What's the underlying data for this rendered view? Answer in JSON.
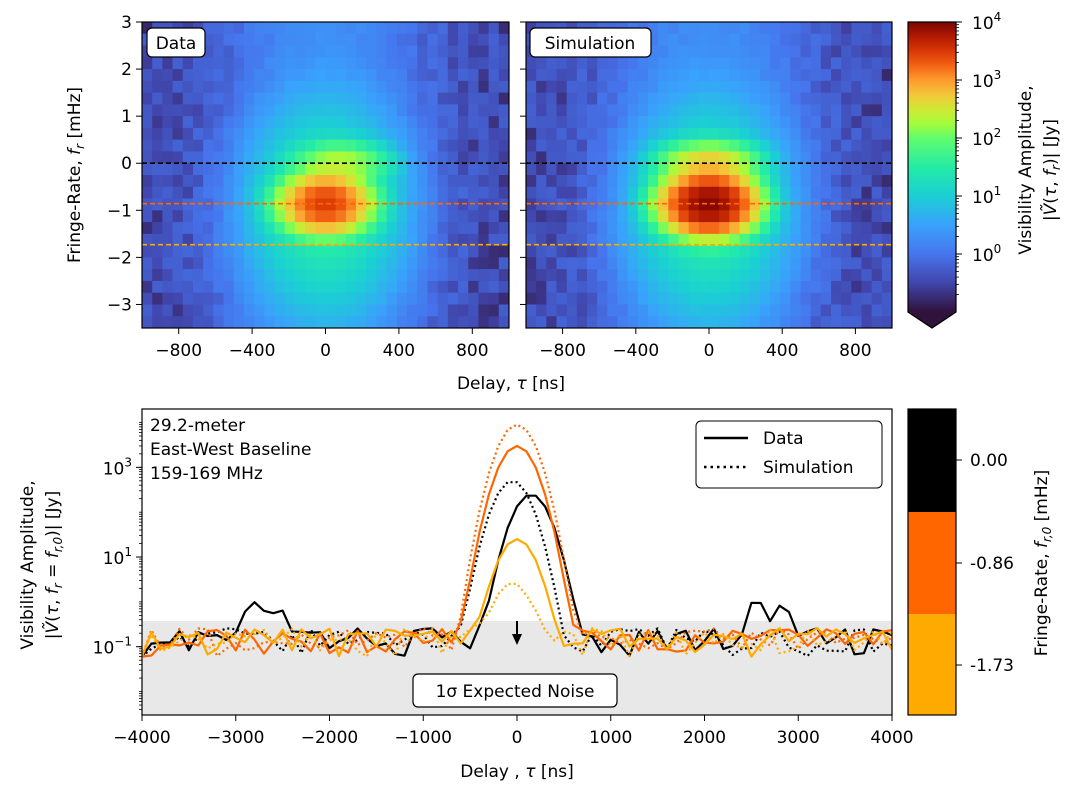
{
  "chart_data": [
    {
      "type": "heatmap",
      "panel_label": "Data",
      "x_ticks": [
        -800,
        -400,
        0,
        400,
        800
      ],
      "xlim": [
        -1000,
        1000
      ],
      "y_ticks": [
        3,
        2,
        1,
        0,
        -1,
        -2,
        -3
      ],
      "ylim": [
        -3.5,
        3
      ],
      "ylabel": "Fringe-Rate, f_r [mHz]",
      "dashed_lines_mHz": [
        0.0,
        -0.86,
        -1.73
      ],
      "peak": {
        "delay_ns": 0,
        "fringe_rate_mHz": -0.86,
        "amplitude_Jy": 3000
      },
      "secondary_peak": {
        "delay_ns": 80,
        "fringe_rate_mHz": 0.0,
        "amplitude_Jy": 200
      }
    },
    {
      "type": "heatmap",
      "panel_label": "Simulation",
      "x_ticks": [
        -800,
        -400,
        0,
        400,
        800
      ],
      "xlim": [
        -1000,
        1000
      ],
      "ylim": [
        -3.5,
        3
      ],
      "dashed_lines_mHz": [
        0.0,
        -0.86,
        -1.73
      ],
      "peak": {
        "delay_ns": 0,
        "fringe_rate_mHz": -0.86,
        "amplitude_Jy": 9000
      },
      "secondary_peak": {
        "delay_ns": 0,
        "fringe_rate_mHz": 0.0,
        "amplitude_Jy": 500
      }
    },
    {
      "type": "colorbar",
      "scale": "log",
      "range": [
        0.1,
        10000
      ],
      "tick_labels": [
        "10^4",
        "10^3",
        "10^2",
        "10^1",
        "10^0"
      ],
      "tick_values": [
        10000,
        1000,
        100,
        10,
        1
      ],
      "label": "Visibility Amplitude, |Ṽ(τ, f_r)| [Jy]"
    },
    {
      "type": "line",
      "xlabel": "Delay , τ [ns]",
      "ylabel": "Visibility Amplitude, |Ṽ(τ, f_r = f_r,0)| [Jy]",
      "xlim": [
        -4000,
        4000
      ],
      "x_ticks": [
        -4000,
        -3000,
        -2000,
        -1000,
        0,
        1000,
        2000,
        3000,
        4000
      ],
      "y_scale": "log",
      "ylim": [
        0.003,
        20000
      ],
      "y_ticks": [
        1000,
        10,
        0.1
      ],
      "y_tick_labels": [
        "10^3",
        "10^1",
        "10^-1"
      ],
      "noise_level_Jy": 0.2,
      "noise_label": "1σ Expected Noise",
      "annotation": [
        "29.2-meter",
        "East-West Baseline",
        "159-169 MHz"
      ],
      "legend": [
        {
          "label": "Data",
          "style": "solid"
        },
        {
          "label": "Simulation",
          "style": "dotted"
        }
      ],
      "series": [
        {
          "fringe_rate": 0.0,
          "color": "#000000",
          "style": "solid",
          "peak_Jy": 250,
          "peak_delay_ns": 150
        },
        {
          "fringe_rate": 0.0,
          "color": "#000000",
          "style": "dotted",
          "peak_Jy": 500,
          "peak_delay_ns": -50
        },
        {
          "fringe_rate": -0.86,
          "color": "#ff6600",
          "style": "solid",
          "peak_Jy": 3000,
          "peak_delay_ns": 0
        },
        {
          "fringe_rate": -0.86,
          "color": "#ff6600",
          "style": "dotted",
          "peak_Jy": 9000,
          "peak_delay_ns": 0
        },
        {
          "fringe_rate": -1.73,
          "color": "#ffaa00",
          "style": "solid",
          "peak_Jy": 25,
          "peak_delay_ns": 0
        },
        {
          "fringe_rate": -1.73,
          "color": "#ffaa00",
          "style": "dotted",
          "peak_Jy": 2.5,
          "peak_delay_ns": -50
        }
      ]
    },
    {
      "type": "colorbar",
      "scale": "discrete",
      "tick_labels": [
        "0.00",
        "-0.86",
        "-1.73"
      ],
      "colors": [
        "#000000",
        "#ff6600",
        "#ffaa00"
      ],
      "label": "Fringe-Rate, f_r,0 [mHz]"
    }
  ],
  "shared_xlabel_top": "Delay, τ [ns]"
}
